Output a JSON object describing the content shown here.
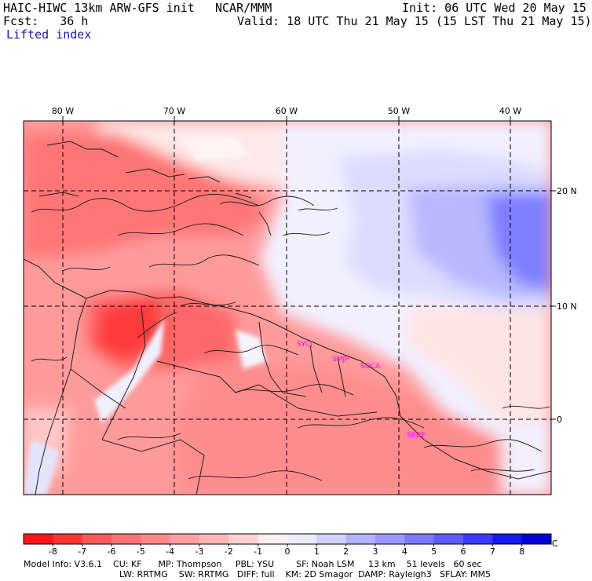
{
  "header": {
    "model": "HAIC-HIWC 13km ARW-GFS init",
    "org": "NCAR/MMM",
    "init": "Init: 06 UTC Wed 20 May 15",
    "fcst": "Fcst:   36 h",
    "valid": "Valid: 18 UTC Thu 21 May 15 (15 LST Thu 21 May 15)",
    "field": "Lifted index"
  },
  "map": {
    "lon_labels": [
      "80 W",
      "70 W",
      "60 W",
      "50 W",
      "40 W"
    ],
    "lat_labels": [
      "20 N",
      "10 N",
      "0"
    ],
    "stations": [
      {
        "id": "SYCJ"
      },
      {
        "id": "SMJP"
      },
      {
        "id": "SOCA"
      },
      {
        "id": "SBBE"
      }
    ]
  },
  "colorbar": {
    "labels": [
      "-8",
      "-7",
      "-6",
      "-5",
      "-4",
      "-3",
      "-2",
      "-1",
      "0",
      "1",
      "2",
      "3",
      "4",
      "5",
      "6",
      "7",
      "8"
    ],
    "unit": "°C",
    "colors": [
      "#ff1515",
      "#ff3535",
      "#ff5a5a",
      "#ff7373",
      "#ff8989",
      "#ffa0a0",
      "#ffb6b6",
      "#ffd2d2",
      "#fff0f0",
      "#ececff",
      "#d2d2ff",
      "#b3b3ff",
      "#9999ff",
      "#7a7aff",
      "#5c5cff",
      "#3a3aff",
      "#1818f0",
      "#0000dd"
    ]
  },
  "footer": {
    "line1": "Model Info: V3.6.1    CU: KF      MP: Thompson     PBL: YSU        SF: Noah LSM     13 km    51 levels   60 sec",
    "line2": "LW: RRTMG    SW: RRTMG   DIFF: full    KM: 2D Smagor  DAMP: Rayleigh3   SFLAY: MM5"
  }
}
